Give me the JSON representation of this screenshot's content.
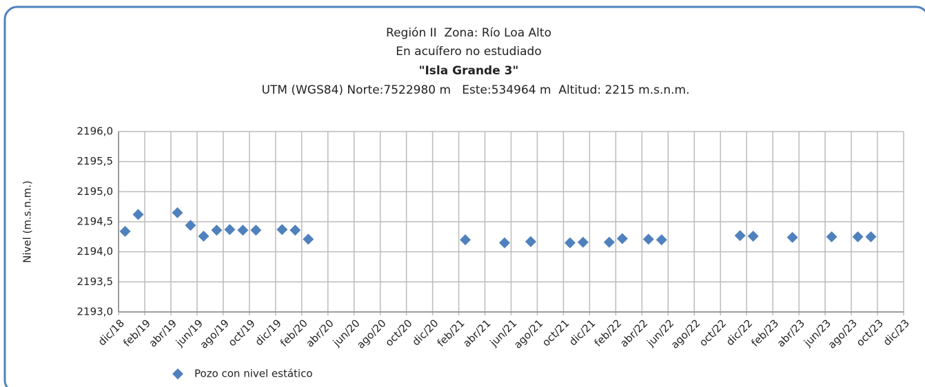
{
  "chart_data": {
    "type": "scatter",
    "title": [
      "Región II  Zona: Río Loa Alto",
      "En acuífero no estudiado",
      "\"Isla Grande 3\"",
      "UTM (WGS84) Norte:7522980 m   Este:534964 m  Altitud: 2215 m.s.n.m."
    ],
    "y_label": "Nivel (m.s.n.m.)",
    "x": [
      "2018-12",
      "2019-01",
      "2019-04",
      "2019-05",
      "2019-06",
      "2019-07",
      "2019-08",
      "2019-09",
      "2019-10",
      "2019-12",
      "2020-01",
      "2020-02",
      "2021-02",
      "2021-05",
      "2021-07",
      "2021-10",
      "2021-11",
      "2022-01",
      "2022-02",
      "2022-04",
      "2022-05",
      "2022-11",
      "2022-12",
      "2023-03",
      "2023-06",
      "2023-08",
      "2023-09"
    ],
    "series": [
      {
        "name": "Pozo con nivel estático",
        "color": "#4f81bd",
        "values": [
          2194.34,
          2194.62,
          2194.65,
          2194.44,
          2194.26,
          2194.36,
          2194.37,
          2194.36,
          2194.36,
          2194.37,
          2194.36,
          2194.21,
          2194.2,
          2194.15,
          2194.17,
          2194.15,
          2194.16,
          2194.16,
          2194.22,
          2194.21,
          2194.2,
          2194.27,
          2194.26,
          2194.24,
          2194.25,
          2194.25,
          2194.25
        ]
      }
    ],
    "xlim": [
      "2018-12",
      "2023-12"
    ],
    "xticks": [
      {
        "value": "2018-12",
        "label": "dic/18"
      },
      {
        "value": "2019-02",
        "label": "feb/19"
      },
      {
        "value": "2019-04",
        "label": "abr/19"
      },
      {
        "value": "2019-06",
        "label": "jun/19"
      },
      {
        "value": "2019-08",
        "label": "ago/19"
      },
      {
        "value": "2019-10",
        "label": "oct/19"
      },
      {
        "value": "2019-12",
        "label": "dic/19"
      },
      {
        "value": "2020-02",
        "label": "feb/20"
      },
      {
        "value": "2020-04",
        "label": "abr/20"
      },
      {
        "value": "2020-06",
        "label": "jun/20"
      },
      {
        "value": "2020-08",
        "label": "ago/20"
      },
      {
        "value": "2020-10",
        "label": "oct/20"
      },
      {
        "value": "2020-12",
        "label": "dic/20"
      },
      {
        "value": "2021-02",
        "label": "feb/21"
      },
      {
        "value": "2021-04",
        "label": "abr/21"
      },
      {
        "value": "2021-06",
        "label": "jun/21"
      },
      {
        "value": "2021-08",
        "label": "ago/21"
      },
      {
        "value": "2021-10",
        "label": "oct/21"
      },
      {
        "value": "2021-12",
        "label": "dic/21"
      },
      {
        "value": "2022-02",
        "label": "feb/22"
      },
      {
        "value": "2022-04",
        "label": "abr/22"
      },
      {
        "value": "2022-06",
        "label": "jun/22"
      },
      {
        "value": "2022-08",
        "label": "ago/22"
      },
      {
        "value": "2022-10",
        "label": "oct/22"
      },
      {
        "value": "2022-12",
        "label": "dic/22"
      },
      {
        "value": "2023-02",
        "label": "feb/23"
      },
      {
        "value": "2023-04",
        "label": "abr/23"
      },
      {
        "value": "2023-06",
        "label": "jun/23"
      },
      {
        "value": "2023-08",
        "label": "ago/23"
      },
      {
        "value": "2023-10",
        "label": "oct/23"
      },
      {
        "value": "2023-12",
        "label": "dic/23"
      }
    ],
    "ylim": [
      2193,
      2196
    ],
    "yticks": [
      {
        "value": 2193,
        "label": "2193,0"
      },
      {
        "value": 2193.5,
        "label": "2193,5"
      },
      {
        "value": 2194,
        "label": "2194,0"
      },
      {
        "value": 2194.5,
        "label": "2194,5"
      },
      {
        "value": 2195,
        "label": "2195,0"
      },
      {
        "value": 2195.5,
        "label": "2195,5"
      },
      {
        "value": 2196,
        "label": "2196,0"
      }
    ],
    "grid": true
  }
}
